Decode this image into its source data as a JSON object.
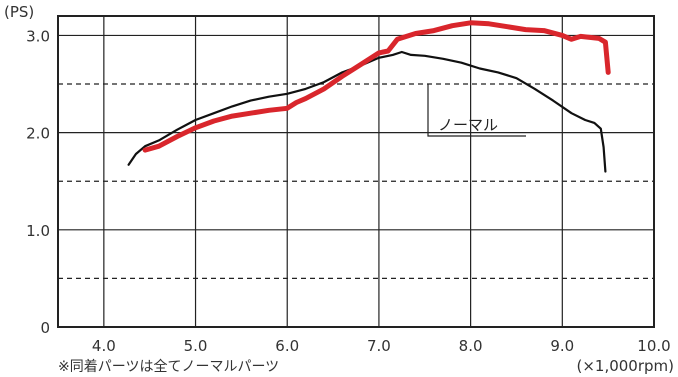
{
  "chart_data": {
    "type": "line",
    "y_unit": "(PS)",
    "x_unit": "(×1,000rpm)",
    "footnote": "※同着パーツは全てノーマルパーツ",
    "xlim": [
      3.5,
      10.0
    ],
    "ylim": [
      0,
      3.2
    ],
    "x_ticks": [
      "4.0",
      "5.0",
      "6.0",
      "7.0",
      "8.0",
      "9.0",
      "10.0"
    ],
    "y_ticks": [
      "0",
      "1.0",
      "2.0",
      "3.0"
    ],
    "x_tick_values": [
      4.0,
      5.0,
      6.0,
      7.0,
      8.0,
      9.0,
      10.0
    ],
    "y_tick_values": [
      0,
      1.0,
      2.0,
      3.0
    ],
    "solid_grid_y": [
      1.0,
      2.0,
      3.0
    ],
    "dashed_grid_y": [
      0.5,
      1.5,
      2.5
    ],
    "grid": true,
    "colors": {
      "modified": "#d9262c",
      "normal": "#111111",
      "grid": "#222222"
    },
    "series": [
      {
        "name": "ノーマル",
        "color": "#111111",
        "x": [
          4.27,
          4.35,
          4.45,
          4.6,
          4.8,
          5.0,
          5.2,
          5.4,
          5.6,
          5.8,
          6.0,
          6.2,
          6.4,
          6.6,
          6.8,
          7.0,
          7.15,
          7.25,
          7.35,
          7.5,
          7.7,
          7.9,
          8.1,
          8.3,
          8.5,
          8.7,
          8.9,
          9.1,
          9.25,
          9.35,
          9.42,
          9.45,
          9.47
        ],
        "y": [
          1.67,
          1.78,
          1.86,
          1.92,
          2.03,
          2.13,
          2.2,
          2.27,
          2.33,
          2.37,
          2.4,
          2.45,
          2.52,
          2.62,
          2.69,
          2.77,
          2.8,
          2.83,
          2.8,
          2.79,
          2.76,
          2.72,
          2.66,
          2.62,
          2.56,
          2.45,
          2.33,
          2.2,
          2.13,
          2.1,
          2.04,
          1.85,
          1.6
        ]
      },
      {
        "color": "#d9262c",
        "x": [
          4.45,
          4.6,
          4.8,
          5.0,
          5.2,
          5.4,
          5.6,
          5.8,
          6.0,
          6.1,
          6.2,
          6.4,
          6.6,
          6.8,
          7.0,
          7.1,
          7.2,
          7.4,
          7.6,
          7.8,
          8.0,
          8.2,
          8.4,
          8.6,
          8.8,
          9.0,
          9.1,
          9.2,
          9.3,
          9.4,
          9.47,
          9.5
        ],
        "y": [
          1.82,
          1.86,
          1.96,
          2.05,
          2.12,
          2.17,
          2.2,
          2.23,
          2.25,
          2.31,
          2.35,
          2.45,
          2.58,
          2.7,
          2.82,
          2.84,
          2.96,
          3.02,
          3.05,
          3.1,
          3.13,
          3.12,
          3.09,
          3.06,
          3.05,
          3.0,
          2.96,
          2.99,
          2.98,
          2.97,
          2.93,
          2.62
        ]
      }
    ]
  }
}
